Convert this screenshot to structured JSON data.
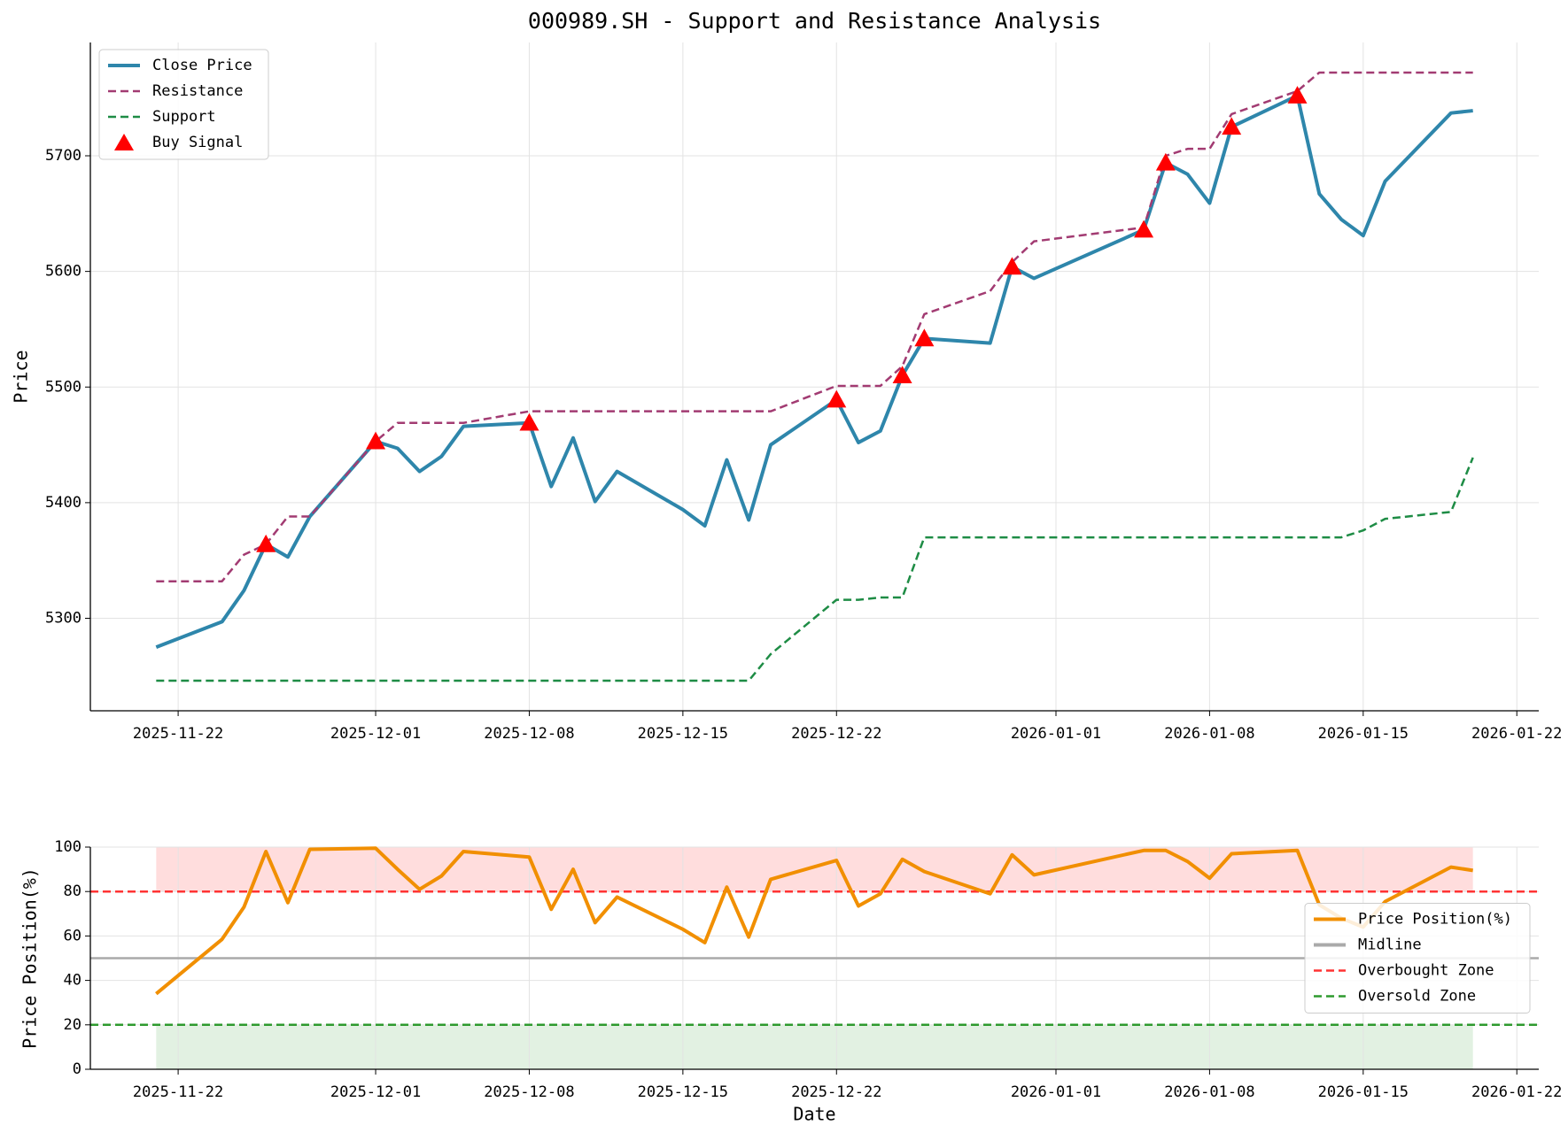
{
  "chart_data": [
    {
      "type": "line",
      "title": "000989.SH - Support and Resistance Analysis",
      "ylabel": "Price",
      "x": [
        "2025-11-21",
        "2025-11-24",
        "2025-11-25",
        "2025-11-26",
        "2025-11-27",
        "2025-11-28",
        "2025-12-01",
        "2025-12-02",
        "2025-12-03",
        "2025-12-04",
        "2025-12-05",
        "2025-12-08",
        "2025-12-09",
        "2025-12-10",
        "2025-12-11",
        "2025-12-12",
        "2025-12-15",
        "2025-12-16",
        "2025-12-17",
        "2025-12-18",
        "2025-12-19",
        "2025-12-22",
        "2025-12-23",
        "2025-12-24",
        "2025-12-25",
        "2025-12-26",
        "2025-12-29",
        "2025-12-30",
        "2025-12-31",
        "2026-01-05",
        "2026-01-06",
        "2026-01-07",
        "2026-01-08",
        "2026-01-09",
        "2026-01-12",
        "2026-01-13",
        "2026-01-14",
        "2026-01-15",
        "2026-01-16",
        "2026-01-19",
        "2026-01-20"
      ],
      "series": [
        {
          "name": "Close Price",
          "color": "#2e86ab",
          "style": "solid",
          "values": [
            5275,
            5297,
            5324,
            5364,
            5353,
            5388,
            5453,
            5447,
            5427,
            5440,
            5466,
            5469,
            5414,
            5456,
            5401,
            5427,
            5394,
            5380,
            5437,
            5385,
            5450,
            5489,
            5452,
            5462,
            5510,
            5542,
            5538,
            5604,
            5594,
            5636,
            5694,
            5684,
            5659,
            5725,
            5752,
            5667,
            5645,
            5631,
            5678,
            5737,
            5739
          ]
        },
        {
          "name": "Resistance",
          "color": "#a23b72",
          "style": "dashed",
          "values": [
            5332,
            5332,
            5355,
            5364,
            5388,
            5388,
            5453,
            5469,
            5469,
            5469,
            5469,
            5479,
            5479,
            5479,
            5479,
            5479,
            5479,
            5479,
            5479,
            5479,
            5479,
            5501,
            5501,
            5501,
            5518,
            5563,
            5583,
            5608,
            5626,
            5638,
            5700,
            5706,
            5706,
            5736,
            5756,
            5772,
            5772,
            5772,
            5772,
            5772,
            5772
          ]
        },
        {
          "name": "Support",
          "color": "#1e8c45",
          "style": "dashed",
          "values": [
            5246,
            5246,
            5246,
            5246,
            5246,
            5246,
            5246,
            5246,
            5246,
            5246,
            5246,
            5246,
            5246,
            5246,
            5246,
            5246,
            5246,
            5246,
            5246,
            5246,
            5269,
            5316,
            5316,
            5318,
            5318,
            5370,
            5370,
            5370,
            5370,
            5370,
            5370,
            5370,
            5370,
            5370,
            5370,
            5370,
            5370,
            5376,
            5386,
            5392,
            5439
          ]
        },
        {
          "name": "Buy Signal",
          "color": "#ff0000",
          "marker": "triangle",
          "x": [
            "2025-11-26",
            "2025-12-01",
            "2025-12-08",
            "2025-12-22",
            "2025-12-25",
            "2025-12-26",
            "2025-12-30",
            "2026-01-05",
            "2026-01-06",
            "2026-01-09",
            "2026-01-12"
          ],
          "values": [
            5364,
            5453,
            5469,
            5489,
            5510,
            5542,
            5604,
            5636,
            5694,
            5725,
            5752
          ]
        }
      ],
      "xlim": [
        "2025-11-18",
        "2026-01-23"
      ],
      "xticks": [
        "2025-11-22",
        "2025-12-01",
        "2025-12-08",
        "2025-12-15",
        "2025-12-22",
        "2026-01-01",
        "2026-01-08",
        "2026-01-15",
        "2026-01-22"
      ],
      "ylim": [
        5220,
        5798
      ],
      "yticks": [
        5300,
        5400,
        5500,
        5600,
        5700
      ],
      "grid": true,
      "legend": "upper left"
    },
    {
      "type": "line",
      "ylabel": "Price Position(%)",
      "xlabel": "Date",
      "x": [
        "2025-11-21",
        "2025-11-24",
        "2025-11-25",
        "2025-11-26",
        "2025-11-27",
        "2025-11-28",
        "2025-12-01",
        "2025-12-02",
        "2025-12-03",
        "2025-12-04",
        "2025-12-05",
        "2025-12-08",
        "2025-12-09",
        "2025-12-10",
        "2025-12-11",
        "2025-12-12",
        "2025-12-15",
        "2025-12-16",
        "2025-12-17",
        "2025-12-18",
        "2025-12-19",
        "2025-12-22",
        "2025-12-23",
        "2025-12-24",
        "2025-12-25",
        "2025-12-26",
        "2025-12-29",
        "2025-12-30",
        "2025-12-31",
        "2026-01-05",
        "2026-01-06",
        "2026-01-07",
        "2026-01-08",
        "2026-01-09",
        "2026-01-12",
        "2026-01-13",
        "2026-01-14",
        "2026-01-15",
        "2026-01-16",
        "2026-01-19",
        "2026-01-20"
      ],
      "series": [
        {
          "name": "Price Position(%)",
          "color": "#f18f01",
          "style": "solid",
          "values": [
            34,
            58.5,
            73,
            98,
            75,
            99,
            99.5,
            90,
            81,
            87,
            98,
            95.5,
            72,
            90,
            66,
            77.5,
            63,
            57,
            82,
            59.5,
            85.5,
            94,
            73.5,
            79,
            94.5,
            89,
            79,
            96.5,
            87.5,
            98.5,
            98.5,
            93.5,
            86,
            97,
            98.5,
            74,
            68,
            64,
            75.5,
            91,
            89.5
          ]
        }
      ],
      "hlines": [
        {
          "name": "Midline",
          "value": 50,
          "color": "#aaaaaa",
          "style": "solid"
        },
        {
          "name": "Overbought Zone",
          "value": 80,
          "color": "#ff3333",
          "style": "dashed"
        },
        {
          "name": "Oversold Zone",
          "value": 20,
          "color": "#2e9a2e",
          "style": "dashed"
        }
      ],
      "bands": [
        {
          "from": 80,
          "to": 100,
          "color": "#ffdddd"
        },
        {
          "from": 0,
          "to": 20,
          "color": "#e2f1e2"
        }
      ],
      "xlim": [
        "2025-11-18",
        "2026-01-23"
      ],
      "xticks": [
        "2025-11-22",
        "2025-12-01",
        "2025-12-08",
        "2025-12-15",
        "2025-12-22",
        "2026-01-01",
        "2026-01-08",
        "2026-01-15",
        "2026-01-22"
      ],
      "ylim": [
        0,
        100
      ],
      "yticks": [
        0,
        20,
        40,
        60,
        80,
        100
      ],
      "grid": true,
      "legend": "center right"
    }
  ]
}
